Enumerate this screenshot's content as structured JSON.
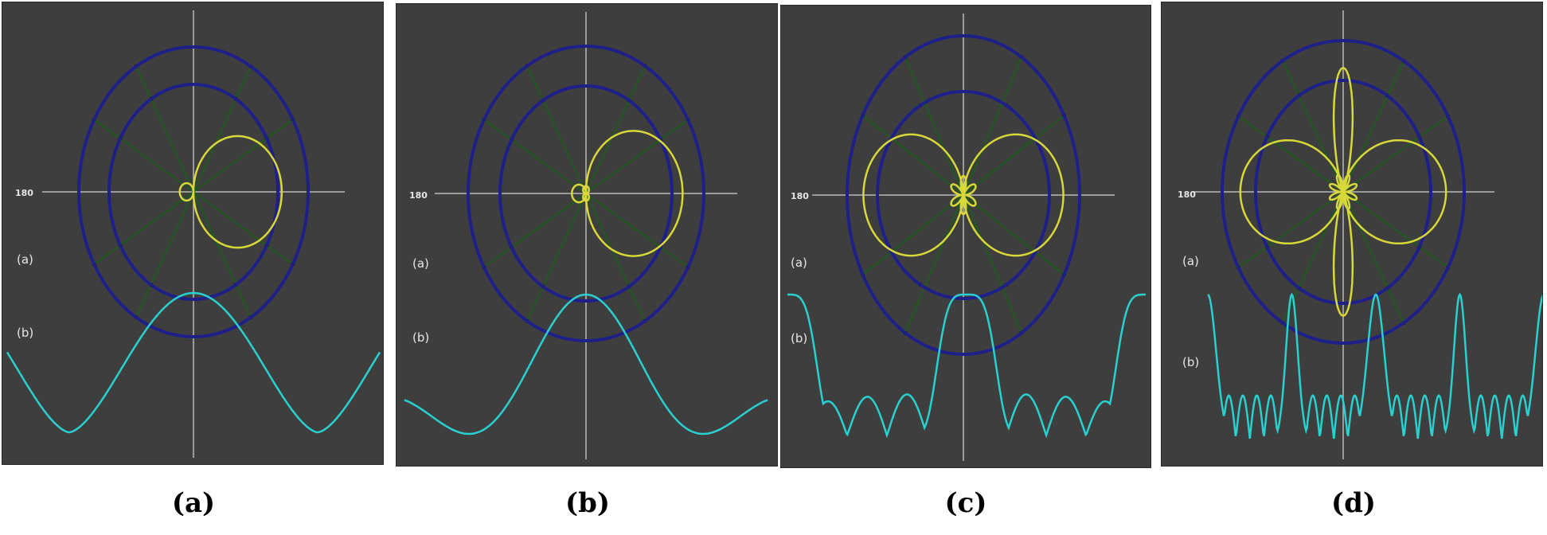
{
  "panels": [
    {
      "id": "a",
      "caption": "(a)",
      "angle_label": "180",
      "label_a": "(a)",
      "label_b": "(b)",
      "polar_pattern": "cardioid-right",
      "colors": {
        "background": "#3e3e3e",
        "rings": "#1f1f8a",
        "spokes": "#1f5a1f",
        "pattern": "#d8d83a",
        "response": "#2ad0d0"
      }
    },
    {
      "id": "b",
      "caption": "(b)",
      "angle_label": "180",
      "label_a": "(a)",
      "label_b": "(b)",
      "polar_pattern": "lobe-right",
      "colors": {
        "background": "#3e3e3e",
        "rings": "#1f1f8a",
        "spokes": "#1f5a1f",
        "pattern": "#d8d83a",
        "response": "#2ad0d0"
      }
    },
    {
      "id": "c",
      "caption": "(c)",
      "angle_label": "180",
      "label_a": "(a)",
      "label_b": "(b)",
      "polar_pattern": "figure-eight",
      "colors": {
        "background": "#3e3e3e",
        "rings": "#1f1f8a",
        "spokes": "#1f5a1f",
        "pattern": "#d8d83a",
        "response": "#2ad0d0"
      }
    },
    {
      "id": "d",
      "caption": "(d)",
      "angle_label": "180",
      "label_a": "(a)",
      "label_b": "(b)",
      "polar_pattern": "figure-eight-with-vertical",
      "colors": {
        "background": "#3e3e3e",
        "rings": "#1f1f8a",
        "spokes": "#1f5a1f",
        "pattern": "#d8d83a",
        "response": "#2ad0d0"
      }
    }
  ]
}
